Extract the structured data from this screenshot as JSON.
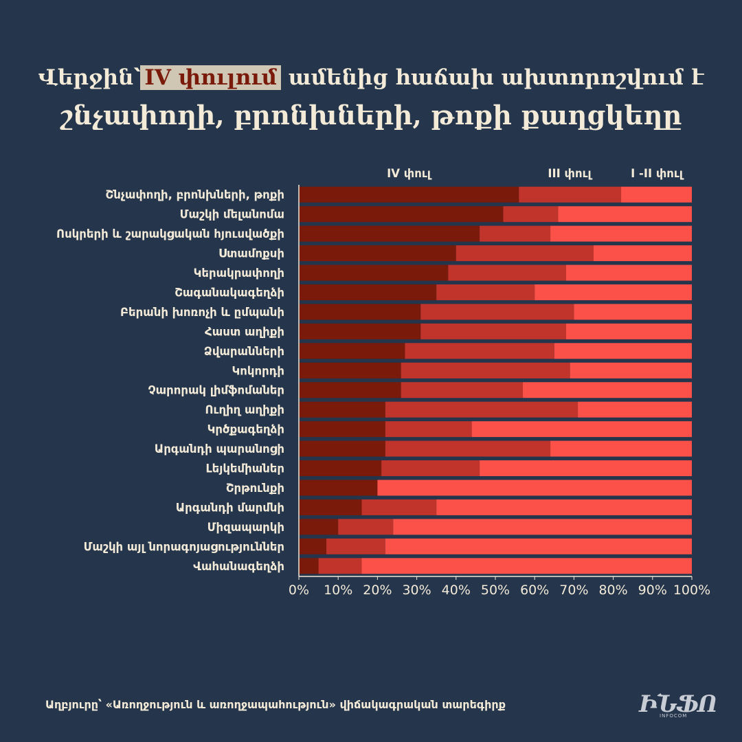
{
  "title": {
    "prefix": "Վերջին՝",
    "highlight": "IV փուլում",
    "suffix": "ամենից հաճախ ախտորոշվում է",
    "line2": "շնչափողի, բրոնխների, թոքի քաղցկեղը"
  },
  "colors": {
    "background": "#24354c",
    "stage4": "#7a1a0a",
    "stage3": "#c0342b",
    "stage12": "#fb5149",
    "text": "#f3ead8"
  },
  "chart_data": {
    "type": "bar",
    "orientation": "horizontal",
    "stacked": true,
    "normalized": true,
    "categories": [
      "Շնչափողի, բրոնխների, թոքի",
      "Մաշկի մելանոմա",
      "Ոսկրերի և շարակցական հյուսվածքի",
      "Ստամոքսի",
      "Կերակրափողի",
      "Շագանակագեղձի",
      "Բերանի խոռոչի և ըմպանի",
      "Հաստ աղիքի",
      "Ձվարանների",
      "Կոկորդի",
      "Չարորակ լիմֆոմաներ",
      "Ուղիղ աղիքի",
      "Կրծքագեղձի",
      "Արգանդի պարանոցի",
      "Լեյկեմիաներ",
      "Շրթունքի",
      "Արգանդի մարմնի",
      "Միզապարկի",
      "Մաշկի այլ նորագոյացություններ",
      "Վահանագեղձի"
    ],
    "series": [
      {
        "name": "IV փուլ",
        "color": "#7a1a0a",
        "values": [
          56,
          52,
          46,
          40,
          38,
          35,
          31,
          31,
          27,
          26,
          26,
          22,
          22,
          22,
          21,
          20,
          16,
          10,
          7,
          5
        ]
      },
      {
        "name": "III փուլ",
        "color": "#c0342b",
        "values": [
          26,
          14,
          18,
          35,
          30,
          25,
          39,
          37,
          38,
          43,
          31,
          49,
          22,
          42,
          25,
          0,
          19,
          14,
          15,
          11
        ]
      },
      {
        "name": "I -II փուլ",
        "color": "#fb5149",
        "values": [
          18,
          34,
          36,
          25,
          32,
          40,
          30,
          32,
          35,
          31,
          43,
          29,
          56,
          36,
          54,
          80,
          65,
          76,
          78,
          84
        ]
      }
    ],
    "xlim": [
      0,
      100
    ],
    "xticks": [
      "0%",
      "10%",
      "20%",
      "30%",
      "40%",
      "50%",
      "60%",
      "70%",
      "80%",
      "90%",
      "100%"
    ],
    "legend": "top",
    "grid": false
  },
  "source": "Աղբյուրը՝ «Առողջություն և առողջապահություն» վիճակագրական տարեգիրք",
  "logo": {
    "text": "ԻՆՖՈ",
    "sub": "INFOCOM"
  }
}
